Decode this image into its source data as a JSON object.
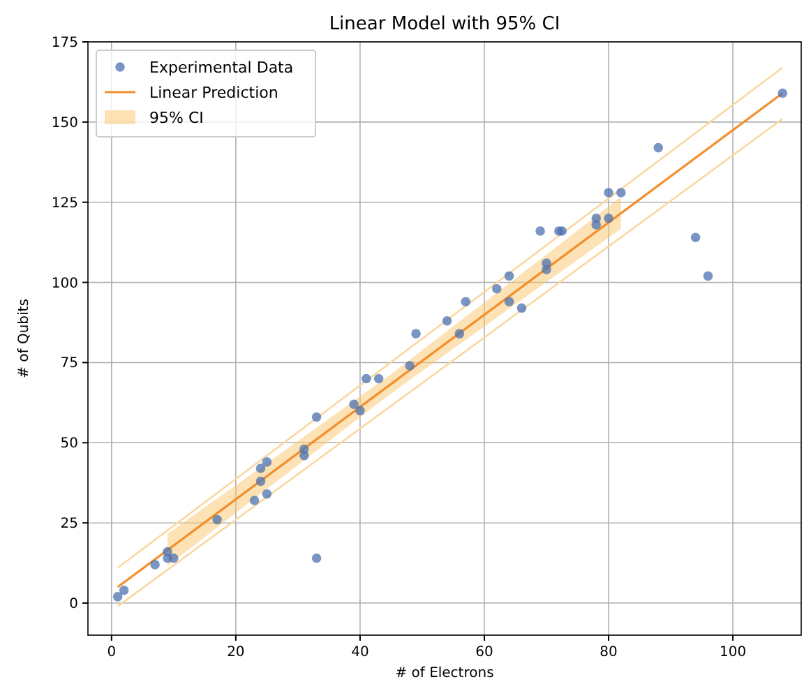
{
  "chart_data": {
    "type": "scatter",
    "title": "Linear Model with 95% CI",
    "xlabel": "# of Electrons",
    "ylabel": "# of Qubits",
    "xlim": [
      -3.8,
      111
    ],
    "ylim": [
      -10,
      175
    ],
    "xticks": [
      0,
      20,
      40,
      60,
      80,
      100
    ],
    "yticks": [
      0,
      25,
      50,
      75,
      100,
      125,
      150,
      175
    ],
    "grid": true,
    "legend": "top left",
    "series": [
      {
        "name": "Experimental Data",
        "marker": "circle",
        "color": "#4c72b0",
        "x": [
          1,
          2,
          7,
          9,
          9,
          10,
          17,
          23,
          24,
          24,
          25,
          25,
          31,
          31,
          33,
          33,
          39,
          40,
          41,
          43,
          48,
          49,
          54,
          56,
          57,
          62,
          64,
          64,
          66,
          69,
          70,
          70,
          72,
          72.5,
          78,
          78,
          80,
          80,
          82,
          88,
          94,
          96,
          108
        ],
        "values": [
          2,
          4,
          12,
          16,
          14,
          14,
          26,
          32,
          38,
          42,
          44,
          34,
          46,
          48,
          58,
          14,
          62,
          60,
          70,
          70,
          74,
          84,
          88,
          84,
          94,
          98,
          102,
          94,
          92,
          116,
          106,
          104,
          116,
          116,
          118,
          120,
          120,
          128,
          128,
          142,
          114,
          102,
          159
        ]
      },
      {
        "name": "Linear Prediction",
        "type": "line",
        "marker": "none",
        "color": "#f28e2b",
        "x": [
          1,
          108
        ],
        "values": [
          5,
          159
        ]
      },
      {
        "name": "95% CI",
        "type": "area",
        "color": "#f9c66b",
        "x": [
          9,
          25,
          45,
          65,
          82
        ],
        "values": [
          null,
          null,
          null,
          null,
          null
        ],
        "lower": [
          11.6,
          35.6,
          65.4,
          93.2,
          116.7
        ],
        "upper": [
          21.6,
          43.6,
          71.4,
          101.2,
          126.7
        ]
      },
      {
        "type": "line",
        "marker": "none",
        "color": "#fbd7a0",
        "x": [
          1,
          108
        ],
        "values": [
          11,
          167
        ]
      },
      {
        "type": "line",
        "marker": "none",
        "color": "#fbd7a0",
        "x": [
          1,
          108
        ],
        "values": [
          -1,
          151
        ]
      }
    ]
  }
}
